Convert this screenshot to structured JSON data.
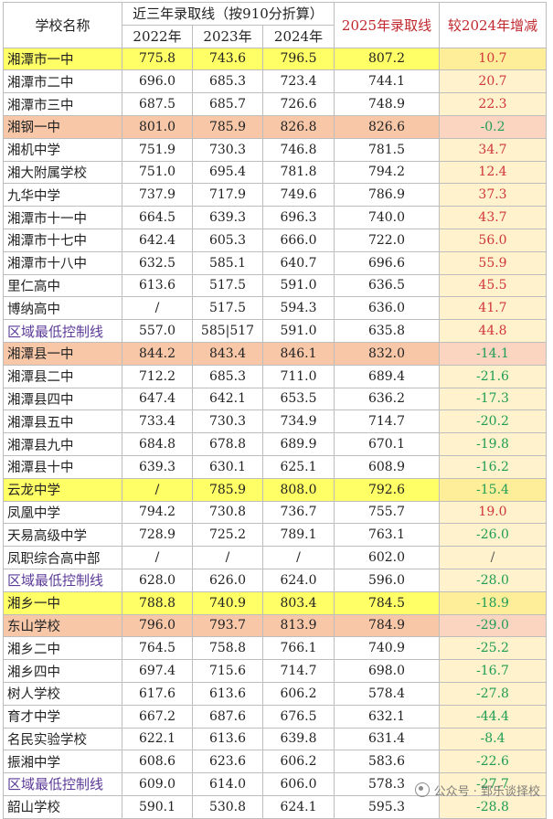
{
  "header": {
    "school": "学校名称",
    "three_year": "近三年录取线（按910分折算）",
    "y2022": "2022年",
    "y2023": "2023年",
    "y2024": "2024年",
    "y2025": "2025年录取线",
    "change": "较2024年增减"
  },
  "rows": [
    {
      "name": "湘潭市一中",
      "v2022": "775.8",
      "v2023": "743.6",
      "v2024": "796.5",
      "v2025": "807.2",
      "chg": "10.7",
      "hl": "yellow",
      "dir": "pos"
    },
    {
      "name": "湘潭市二中",
      "v2022": "696.0",
      "v2023": "685.3",
      "v2024": "723.4",
      "v2025": "744.1",
      "chg": "20.7",
      "dir": "pos"
    },
    {
      "name": "湘潭市三中",
      "v2022": "687.5",
      "v2023": "685.7",
      "v2024": "726.6",
      "v2025": "748.9",
      "chg": "22.3",
      "dir": "pos"
    },
    {
      "name": "湘钢一中",
      "v2022": "801.0",
      "v2023": "785.9",
      "v2024": "826.8",
      "v2025": "826.6",
      "chg": "-0.2",
      "hl": "orange",
      "dir": "neg"
    },
    {
      "name": "湘机中学",
      "v2022": "751.9",
      "v2023": "730.3",
      "v2024": "746.8",
      "v2025": "781.5",
      "chg": "34.7",
      "dir": "pos"
    },
    {
      "name": "湘大附属学校",
      "v2022": "751.0",
      "v2023": "695.4",
      "v2024": "781.8",
      "v2025": "794.2",
      "chg": "12.4",
      "dir": "pos"
    },
    {
      "name": "九华中学",
      "v2022": "737.9",
      "v2023": "717.9",
      "v2024": "749.6",
      "v2025": "786.9",
      "chg": "37.3",
      "dir": "pos"
    },
    {
      "name": "湘潭市十一中",
      "v2022": "664.5",
      "v2023": "639.3",
      "v2024": "696.3",
      "v2025": "740.0",
      "chg": "43.7",
      "dir": "pos"
    },
    {
      "name": "湘潭市十七中",
      "v2022": "642.4",
      "v2023": "605.3",
      "v2024": "666.0",
      "v2025": "722.0",
      "chg": "56.0",
      "dir": "pos"
    },
    {
      "name": "湘潭市十八中",
      "v2022": "632.5",
      "v2023": "585.1",
      "v2024": "640.7",
      "v2025": "696.6",
      "chg": "55.9",
      "dir": "pos"
    },
    {
      "name": "里仁高中",
      "v2022": "613.6",
      "v2023": "517.5",
      "v2024": "591.0",
      "v2025": "636.5",
      "chg": "45.5",
      "dir": "pos"
    },
    {
      "name": "博纳高中",
      "v2022": "/",
      "v2023": "517.5",
      "v2024": "594.3",
      "v2025": "636.0",
      "chg": "41.7",
      "dir": "pos"
    },
    {
      "name": "区域最低控制线",
      "v2022": "557.0",
      "v2023": "585|517",
      "v2024": "591.0",
      "v2025": "635.8",
      "chg": "44.8",
      "ctrl": true,
      "dir": "pos"
    },
    {
      "name": "湘潭县一中",
      "v2022": "844.2",
      "v2023": "843.4",
      "v2024": "846.1",
      "v2025": "832.0",
      "chg": "-14.1",
      "hl": "orange",
      "dir": "neg"
    },
    {
      "name": "湘潭县二中",
      "v2022": "712.2",
      "v2023": "685.3",
      "v2024": "711.0",
      "v2025": "689.4",
      "chg": "-21.6",
      "dir": "neg"
    },
    {
      "name": "湘潭县四中",
      "v2022": "647.4",
      "v2023": "642.1",
      "v2024": "653.5",
      "v2025": "636.2",
      "chg": "-17.3",
      "dir": "neg"
    },
    {
      "name": "湘潭县五中",
      "v2022": "733.4",
      "v2023": "730.3",
      "v2024": "734.9",
      "v2025": "714.7",
      "chg": "-20.2",
      "dir": "neg"
    },
    {
      "name": "湘潭县九中",
      "v2022": "684.8",
      "v2023": "678.8",
      "v2024": "689.9",
      "v2025": "670.1",
      "chg": "-19.8",
      "dir": "neg"
    },
    {
      "name": "湘潭县十中",
      "v2022": "639.3",
      "v2023": "630.1",
      "v2024": "625.1",
      "v2025": "608.9",
      "chg": "-16.2",
      "dir": "neg"
    },
    {
      "name": "云龙中学",
      "v2022": "/",
      "v2023": "785.9",
      "v2024": "808.0",
      "v2025": "792.6",
      "chg": "-15.4",
      "hl": "yellow",
      "dir": "neg"
    },
    {
      "name": "凤凰中学",
      "v2022": "794.2",
      "v2023": "730.8",
      "v2024": "736.7",
      "v2025": "755.7",
      "chg": "19.0",
      "dir": "pos"
    },
    {
      "name": "天易高级中学",
      "v2022": "728.9",
      "v2023": "725.2",
      "v2024": "789.1",
      "v2025": "763.1",
      "chg": "-26.0",
      "dir": "neg"
    },
    {
      "name": "凤职综合高中部",
      "v2022": "/",
      "v2023": "/",
      "v2024": "/",
      "v2025": "602.0",
      "chg": "/",
      "dir": "nul"
    },
    {
      "name": "区域最低控制线",
      "v2022": "628.0",
      "v2023": "626.0",
      "v2024": "624.0",
      "v2025": "596.0",
      "chg": "-28.0",
      "ctrl": true,
      "dir": "neg"
    },
    {
      "name": "湘乡一中",
      "v2022": "788.8",
      "v2023": "740.9",
      "v2024": "803.4",
      "v2025": "784.5",
      "chg": "-18.9",
      "hl": "yellow",
      "dir": "neg"
    },
    {
      "name": "东山学校",
      "v2022": "796.0",
      "v2023": "793.7",
      "v2024": "813.9",
      "v2025": "784.9",
      "chg": "-29.0",
      "hl": "orange",
      "dir": "neg"
    },
    {
      "name": "湘乡二中",
      "v2022": "764.5",
      "v2023": "758.8",
      "v2024": "766.1",
      "v2025": "740.9",
      "chg": "-25.2",
      "dir": "neg"
    },
    {
      "name": "湘乡四中",
      "v2022": "697.4",
      "v2023": "715.6",
      "v2024": "714.7",
      "v2025": "698.0",
      "chg": "-16.7",
      "dir": "neg"
    },
    {
      "name": "树人学校",
      "v2022": "617.6",
      "v2023": "613.6",
      "v2024": "606.2",
      "v2025": "578.4",
      "chg": "-27.8",
      "dir": "neg"
    },
    {
      "name": "育才中学",
      "v2022": "667.2",
      "v2023": "687.6",
      "v2024": "676.5",
      "v2025": "632.1",
      "chg": "-44.4",
      "dir": "neg"
    },
    {
      "name": "名民实验学校",
      "v2022": "622.1",
      "v2023": "613.6",
      "v2024": "639.8",
      "v2025": "631.4",
      "chg": "-8.4",
      "dir": "neg"
    },
    {
      "name": "振湘中学",
      "v2022": "608.6",
      "v2023": "623.6",
      "v2024": "606.2",
      "v2025": "583.6",
      "chg": "-22.6",
      "dir": "neg"
    },
    {
      "name": "区域最低控制线",
      "v2022": "609.0",
      "v2023": "614.0",
      "v2024": "606.0",
      "v2025": "578.3",
      "chg": "-27.7",
      "ctrl": true,
      "dir": "neg"
    },
    {
      "name": "韶山学校",
      "v2022": "590.1",
      "v2023": "530.8",
      "v2024": "624.1",
      "v2025": "595.3",
      "chg": "-28.8",
      "dir": "neg"
    }
  ],
  "watermark": "公众号 · 郅乐谈择校",
  "colors": {
    "yellow": "#ffff66",
    "orange": "#f7c7a8",
    "increase_text": "#d0363a",
    "decrease_text": "#1f9d55",
    "control_line_text": "#5b3a98",
    "header_red": "#c0282e"
  }
}
